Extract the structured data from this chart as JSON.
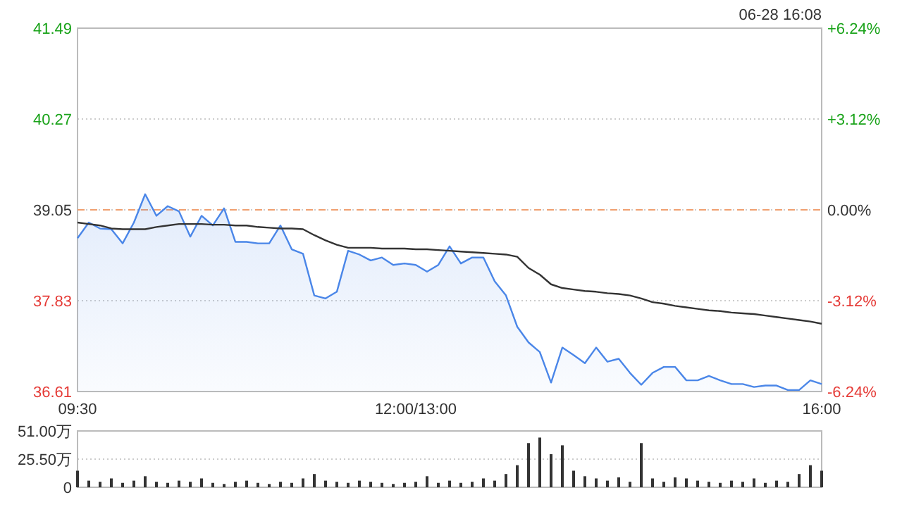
{
  "chart_data": [
    {
      "type": "line",
      "annotations": [
        "06-28 16:08"
      ],
      "categories": [
        "09:30",
        null,
        null,
        null,
        null,
        null,
        null,
        null,
        null,
        null,
        null,
        null,
        null,
        null,
        null,
        null,
        null,
        null,
        null,
        null,
        null,
        null,
        null,
        null,
        null,
        null,
        null,
        null,
        null,
        null,
        "12:00/13:00",
        null,
        null,
        null,
        null,
        null,
        null,
        null,
        null,
        null,
        null,
        null,
        null,
        null,
        null,
        null,
        null,
        null,
        null,
        null,
        null,
        null,
        null,
        null,
        null,
        null,
        null,
        null,
        null,
        null,
        null,
        null,
        null,
        null,
        null,
        null,
        "16:00"
      ],
      "ylim": [
        36.61,
        41.49
      ],
      "yticks": [
        36.61,
        37.83,
        39.05,
        40.27,
        41.49
      ],
      "y2lim": [
        -6.24,
        6.24
      ],
      "y2ticks": [
        {
          "value": -6.24,
          "label": "-6.24%"
        },
        {
          "value": -3.12,
          "label": "-3.12%"
        },
        {
          "value": 0,
          "label": "0.00%"
        },
        {
          "value": 3.12,
          "label": "+3.12%"
        },
        {
          "value": 6.24,
          "label": "+6.24%"
        }
      ],
      "grid": "y",
      "ref_lines": [
        {
          "axis": "y",
          "value": 39.05,
          "color": "#f0a070",
          "line_style": "dashed"
        }
      ],
      "series": [
        {
          "type": "area",
          "color": "#4a86e8",
          "values": [
            38.67,
            38.88,
            38.8,
            38.79,
            38.6,
            38.88,
            39.26,
            38.97,
            39.1,
            39.03,
            38.69,
            38.97,
            38.84,
            39.07,
            38.62,
            38.62,
            38.6,
            38.6,
            38.84,
            38.52,
            38.46,
            37.9,
            37.86,
            37.95,
            38.5,
            38.45,
            38.37,
            38.41,
            38.31,
            38.33,
            38.31,
            38.22,
            38.31,
            38.56,
            38.33,
            38.41,
            38.41,
            38.09,
            37.9,
            37.48,
            37.27,
            37.14,
            36.73,
            37.2,
            37.1,
            36.99,
            37.2,
            37.01,
            37.05,
            36.86,
            36.7,
            36.86,
            36.94,
            36.94,
            36.76,
            36.76,
            36.82,
            36.76,
            36.71,
            36.71,
            36.67,
            36.69,
            36.69,
            36.63,
            36.63,
            36.76,
            36.71
          ]
        },
        {
          "color": "#333333",
          "values": [
            38.88,
            38.86,
            38.84,
            38.8,
            38.79,
            38.79,
            38.79,
            38.82,
            38.84,
            38.86,
            38.86,
            38.86,
            38.85,
            38.85,
            38.84,
            38.84,
            38.82,
            38.81,
            38.8,
            38.8,
            38.79,
            38.71,
            38.64,
            38.58,
            38.54,
            38.54,
            38.54,
            38.53,
            38.53,
            38.53,
            38.52,
            38.52,
            38.51,
            38.5,
            38.49,
            38.48,
            38.47,
            38.46,
            38.45,
            38.42,
            38.27,
            38.18,
            38.05,
            38.0,
            37.98,
            37.96,
            37.95,
            37.93,
            37.92,
            37.9,
            37.86,
            37.81,
            37.79,
            37.76,
            37.74,
            37.72,
            37.7,
            37.69,
            37.67,
            37.66,
            37.65,
            37.63,
            37.61,
            37.59,
            37.57,
            37.55,
            37.52
          ]
        }
      ]
    },
    {
      "type": "bar",
      "tick_labels": "y",
      "grid": "y",
      "categories": [
        null,
        null,
        null,
        null,
        null,
        null,
        null,
        null,
        null,
        null,
        null,
        null,
        null,
        null,
        null,
        null,
        null,
        null,
        null,
        null,
        null,
        null,
        null,
        null,
        null,
        null,
        null,
        null,
        null,
        null,
        null,
        null,
        null,
        null,
        null,
        null,
        null,
        null,
        null,
        null,
        null,
        null,
        null,
        null,
        null,
        null,
        null,
        null,
        null,
        null,
        null,
        null,
        null,
        null,
        null,
        null,
        null,
        null,
        null,
        null,
        null,
        null,
        null,
        null,
        null,
        null,
        null
      ],
      "ylim": [
        0,
        51
      ],
      "yticks": [
        0,
        {
          "value": 25.5,
          "label": "25.50万"
        },
        {
          "value": 51,
          "label": "51.00万"
        }
      ],
      "series": [
        {
          "color": "#333333",
          "values": [
            15,
            6,
            5,
            8,
            4,
            6,
            10,
            5,
            4,
            6,
            5,
            8,
            4,
            3,
            5,
            6,
            4,
            3,
            5,
            4,
            8,
            12,
            6,
            5,
            4,
            6,
            5,
            4,
            3,
            4,
            5,
            10,
            4,
            6,
            4,
            5,
            8,
            6,
            12,
            20,
            40,
            45,
            30,
            38,
            15,
            10,
            8,
            6,
            9,
            5,
            40,
            8,
            5,
            9,
            8,
            6,
            5,
            4,
            6,
            5,
            8,
            4,
            6,
            5,
            12,
            20,
            15
          ]
        }
      ]
    }
  ]
}
